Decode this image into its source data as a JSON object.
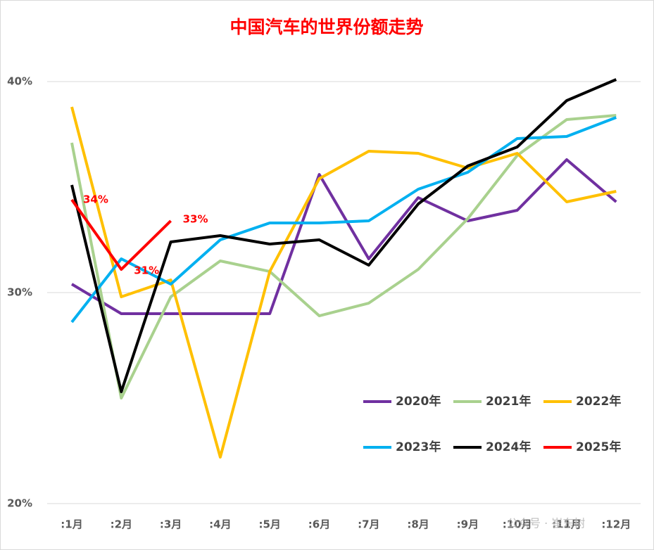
{
  "chart_data": {
    "type": "line",
    "title": "中国汽车的世界份额走势",
    "categories": [
      ":1月",
      ":2月",
      ":3月",
      ":4月",
      ":5月",
      ":6月",
      ":7月",
      ":8月",
      ":9月",
      ":10月",
      ":11月",
      ":12月"
    ],
    "series": [
      {
        "name": "2020年",
        "color": "#7030a0",
        "values": [
          30.4,
          29.0,
          29.0,
          29.0,
          29.0,
          35.6,
          31.6,
          34.5,
          33.4,
          33.9,
          36.3,
          34.3
        ]
      },
      {
        "name": "2021年",
        "color": "#a9d18e",
        "values": [
          37.1,
          25.0,
          29.8,
          31.5,
          31.0,
          28.9,
          29.5,
          31.1,
          33.5,
          36.5,
          38.2,
          38.4
        ]
      },
      {
        "name": "2022年",
        "color": "#ffc000",
        "values": [
          38.8,
          29.8,
          30.6,
          22.2,
          31.0,
          35.4,
          36.7,
          36.6,
          35.9,
          36.6,
          34.3,
          34.8
        ]
      },
      {
        "name": "2023年",
        "color": "#00b0f0",
        "values": [
          28.6,
          31.6,
          30.4,
          32.5,
          33.3,
          33.3,
          33.4,
          34.9,
          35.7,
          37.3,
          37.4,
          38.3
        ]
      },
      {
        "name": "2024年",
        "color": "#000000",
        "values": [
          35.1,
          25.3,
          32.4,
          32.7,
          32.3,
          32.5,
          31.3,
          34.2,
          36.0,
          36.9,
          39.1,
          40.1
        ]
      },
      {
        "name": "2025年",
        "color": "#ff0000",
        "values": [
          34.4,
          31.1,
          33.4,
          null,
          null,
          null,
          null,
          null,
          null,
          null,
          null,
          null
        ],
        "value_labels": [
          "34%",
          "31%",
          "33%",
          null,
          null,
          null,
          null,
          null,
          null,
          null,
          null,
          null
        ]
      }
    ],
    "ylim": [
      20,
      40
    ],
    "yticks": [
      {
        "value": 20,
        "label": "20%"
      },
      {
        "value": 30,
        "label": "30%"
      },
      {
        "value": 40,
        "label": "40%"
      }
    ],
    "grid": true,
    "legend": "lower right",
    "watermark": "公众号 · 崔东树"
  }
}
